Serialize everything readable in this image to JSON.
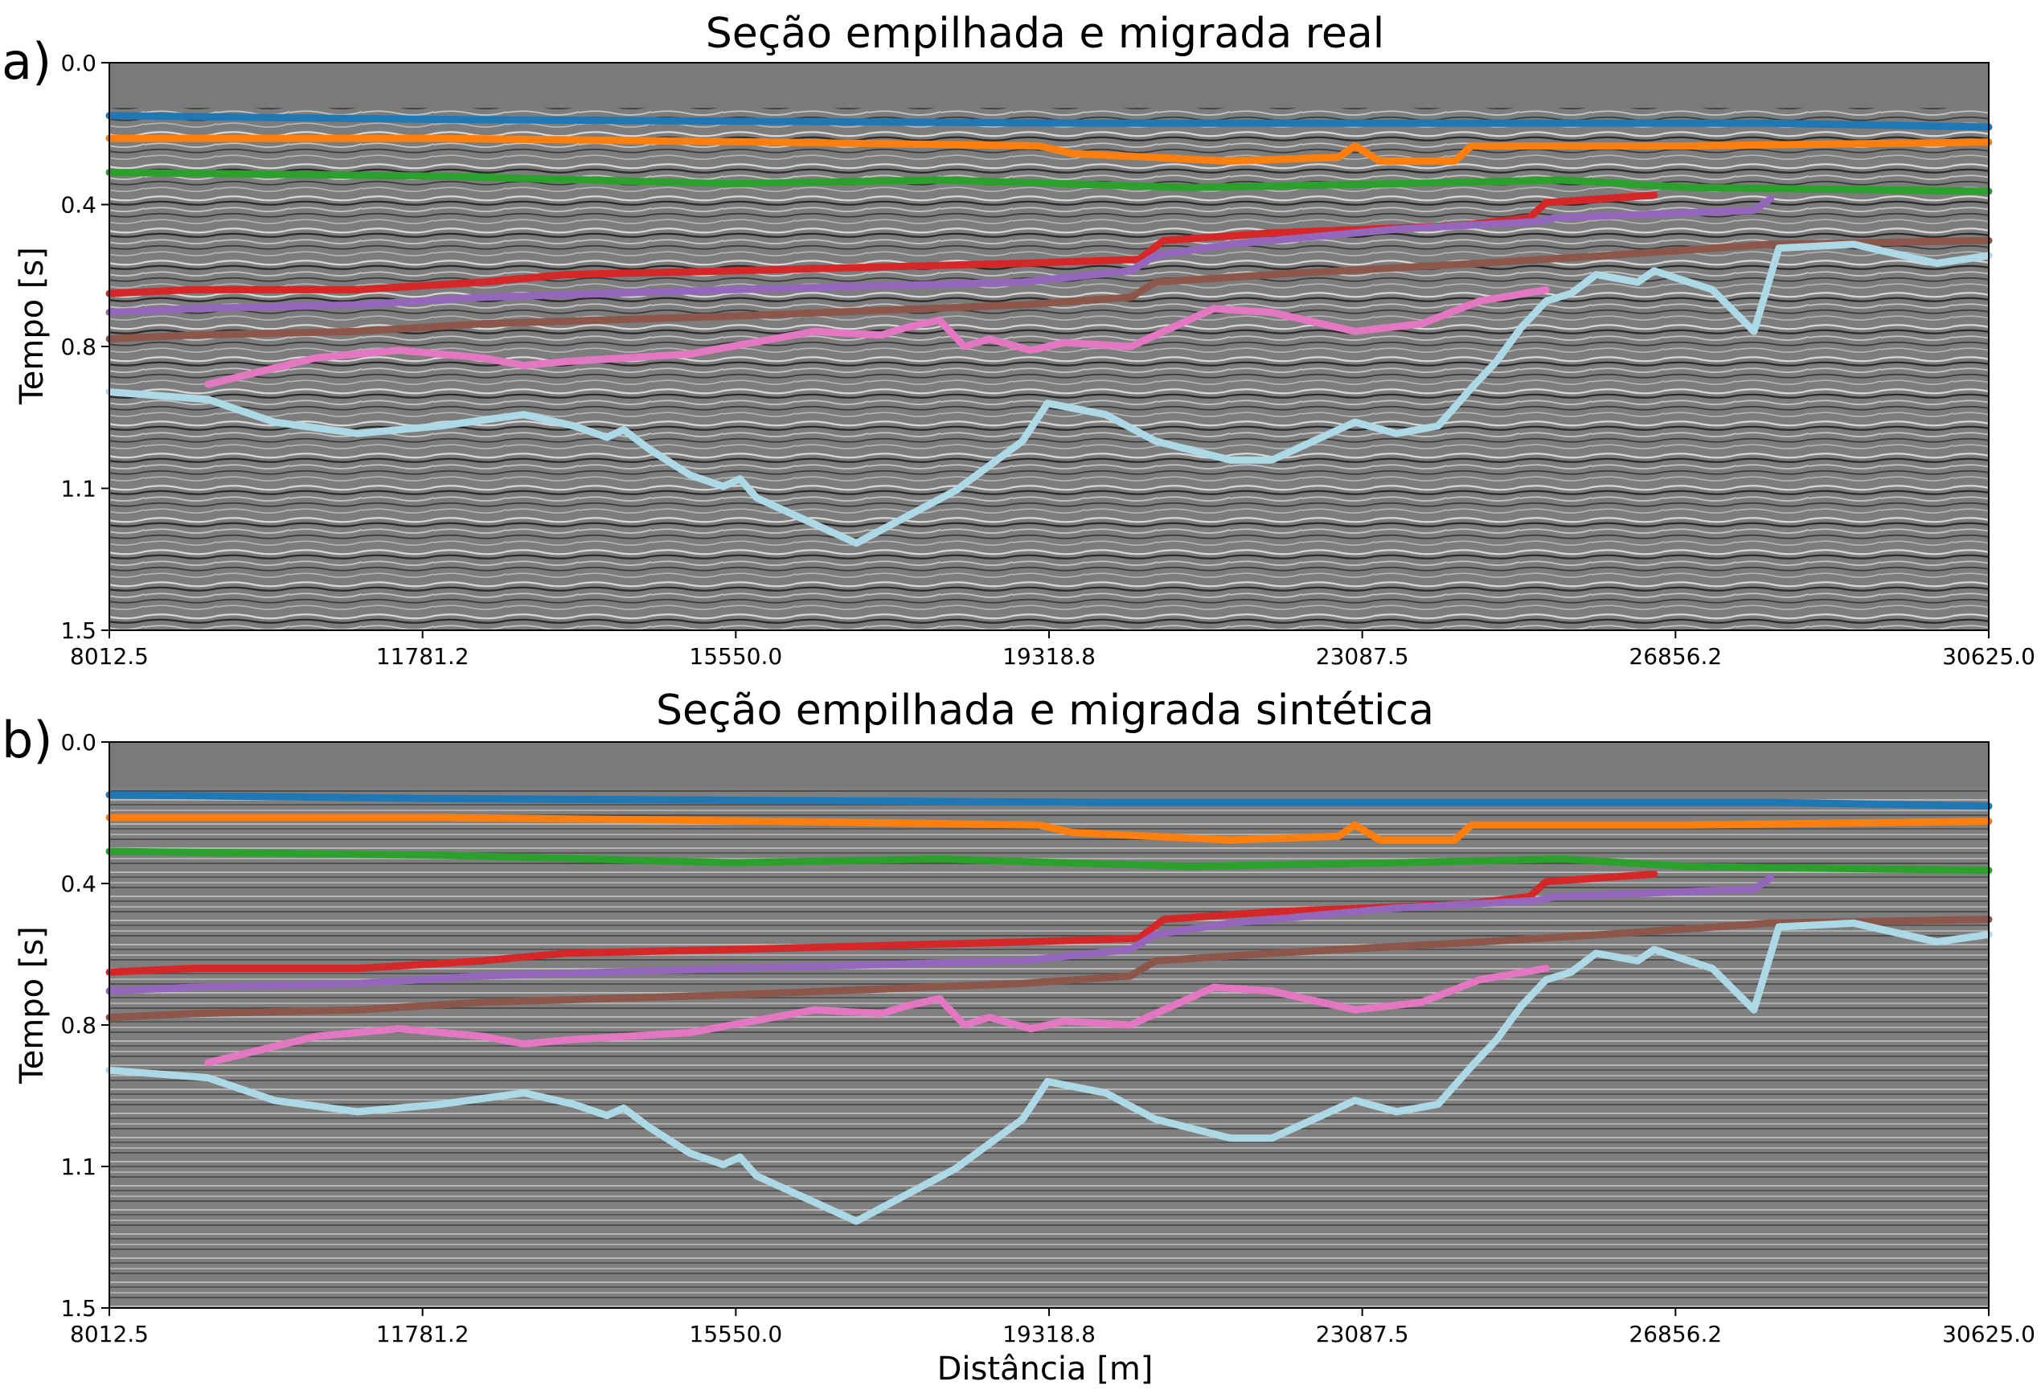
{
  "panels": [
    {
      "label": "a)",
      "title": "Seção empilhada e migrada real",
      "ylabel": "Tempo [s]",
      "xlabel": ""
    },
    {
      "label": "b)",
      "title": "Seção empilhada e migrada sintética",
      "ylabel": "Tempo [s]",
      "xlabel": "Distância [m]"
    }
  ],
  "colors": {
    "background": "#7a7a7a",
    "horizons": [
      "#1f77b4",
      "#ff7f0e",
      "#2ca02c",
      "#d62728",
      "#9467bd",
      "#8c564b",
      "#e377c2",
      "#add8e6"
    ]
  },
  "chart_data": [
    {
      "type": "line",
      "title": "Seção empilhada e migrada real",
      "xlabel": "",
      "ylabel": "Tempo [s]",
      "xlim": [
        8012.5,
        30625.0
      ],
      "ylim": [
        1.5,
        0.0
      ],
      "x_ticks": [
        "8012.5",
        "11781.2",
        "15550.0",
        "19318.8",
        "23087.5",
        "26856.2",
        "30625.0"
      ],
      "y_ticks": [
        "0.0",
        "0.4",
        "0.8",
        "1.1",
        "1.5"
      ],
      "background": "seismic section (grayscale)",
      "series": [
        {
          "color": "#1f77b4",
          "x": [
            8012.5,
            12000,
            16000,
            20000,
            24000,
            28000,
            30625
          ],
          "y": [
            0.14,
            0.15,
            0.155,
            0.16,
            0.16,
            0.16,
            0.17
          ]
        },
        {
          "color": "#ff7f0e",
          "x": [
            8012.5,
            12000,
            16000,
            19200,
            19600,
            21500,
            22800,
            23000,
            23300,
            24200,
            24400,
            27000,
            30625
          ],
          "y": [
            0.2,
            0.2,
            0.21,
            0.22,
            0.24,
            0.26,
            0.25,
            0.22,
            0.26,
            0.26,
            0.22,
            0.22,
            0.21
          ]
        },
        {
          "color": "#2ca02c",
          "x": [
            8012.5,
            12000,
            15500,
            18000,
            21000,
            23500,
            25500,
            27000,
            30625
          ],
          "y": [
            0.29,
            0.3,
            0.32,
            0.31,
            0.33,
            0.32,
            0.31,
            0.33,
            0.34
          ]
        },
        {
          "color": "#d62728",
          "x": [
            8012.5,
            9000,
            11000,
            12500,
            13500,
            15500,
            19000,
            20400,
            20700,
            22000,
            24300,
            25100,
            25300,
            26600
          ],
          "y": [
            0.61,
            0.6,
            0.6,
            0.58,
            0.56,
            0.55,
            0.53,
            0.52,
            0.47,
            0.45,
            0.43,
            0.41,
            0.37,
            0.35
          ]
        },
        {
          "color": "#9467bd",
          "x": [
            8012.5,
            9000,
            11000,
            12500,
            15500,
            19000,
            20300,
            20600,
            21500,
            23000,
            23500,
            25200,
            25400,
            27800,
            28000
          ],
          "y": [
            0.66,
            0.65,
            0.64,
            0.62,
            0.6,
            0.58,
            0.55,
            0.51,
            0.48,
            0.45,
            0.44,
            0.42,
            0.41,
            0.39,
            0.36
          ]
        },
        {
          "color": "#8c564b",
          "x": [
            8012.5,
            9000,
            11000,
            12500,
            15500,
            19000,
            20300,
            20600,
            22000,
            24500,
            26000,
            28000,
            30625
          ],
          "y": [
            0.73,
            0.72,
            0.71,
            0.69,
            0.67,
            0.64,
            0.62,
            0.58,
            0.56,
            0.53,
            0.51,
            0.48,
            0.47
          ]
        },
        {
          "color": "#e377c2",
          "x": [
            9200,
            10500,
            11500,
            12500,
            13000,
            13500,
            15000,
            16500,
            17300,
            17600,
            18000,
            18300,
            18600,
            19100,
            19500,
            20300,
            20800,
            21300,
            22000,
            23000,
            23800,
            24500,
            25300
          ],
          "y": [
            0.85,
            0.78,
            0.76,
            0.78,
            0.8,
            0.79,
            0.77,
            0.71,
            0.72,
            0.7,
            0.68,
            0.75,
            0.73,
            0.76,
            0.74,
            0.75,
            0.7,
            0.65,
            0.66,
            0.71,
            0.69,
            0.63,
            0.6
          ]
        },
        {
          "color": "#add8e6",
          "x": [
            8012.5,
            9200,
            10000,
            11000,
            12000,
            13000,
            13600,
            14000,
            14200,
            14500,
            15000,
            15400,
            15600,
            15800,
            17000,
            18200,
            19000,
            19300,
            20000,
            20600,
            21500,
            22000,
            23000,
            23500,
            24000,
            24400,
            24700,
            25000,
            25300,
            25600,
            25900,
            26400,
            26600,
            27300,
            27800,
            28100,
            29000,
            30000,
            30625
          ],
          "y": [
            0.87,
            0.89,
            0.95,
            0.98,
            0.96,
            0.93,
            0.96,
            0.99,
            0.97,
            1.02,
            1.09,
            1.12,
            1.1,
            1.15,
            1.27,
            1.13,
            1.0,
            0.9,
            0.93,
            1.0,
            1.05,
            1.05,
            0.95,
            0.98,
            0.96,
            0.86,
            0.79,
            0.7,
            0.63,
            0.61,
            0.56,
            0.58,
            0.55,
            0.6,
            0.71,
            0.49,
            0.48,
            0.53,
            0.51
          ]
        }
      ]
    },
    {
      "type": "line",
      "title": "Seção empilhada e migrada sintética",
      "xlabel": "Distância [m]",
      "ylabel": "Tempo [s]",
      "xlim": [
        8012.5,
        30625.0
      ],
      "ylim": [
        1.5,
        0.0
      ],
      "x_ticks": [
        "8012.5",
        "11781.2",
        "15550.0",
        "19318.8",
        "23087.5",
        "26856.2",
        "30625.0"
      ],
      "y_ticks": [
        "0.0",
        "0.4",
        "0.8",
        "1.1",
        "1.5"
      ],
      "background": "synthetic seismic section (grayscale)",
      "series": [
        {
          "color": "#1f77b4",
          "x": [
            8012.5,
            12000,
            16000,
            20000,
            24000,
            28000,
            30625
          ],
          "y": [
            0.14,
            0.15,
            0.155,
            0.16,
            0.16,
            0.16,
            0.17
          ]
        },
        {
          "color": "#ff7f0e",
          "x": [
            8012.5,
            12000,
            16000,
            19200,
            19600,
            21500,
            22800,
            23000,
            23300,
            24200,
            24400,
            27000,
            30625
          ],
          "y": [
            0.2,
            0.2,
            0.21,
            0.22,
            0.24,
            0.26,
            0.25,
            0.22,
            0.26,
            0.26,
            0.22,
            0.22,
            0.21
          ]
        },
        {
          "color": "#2ca02c",
          "x": [
            8012.5,
            12000,
            15500,
            18000,
            21000,
            23500,
            25500,
            27000,
            30625
          ],
          "y": [
            0.29,
            0.3,
            0.32,
            0.31,
            0.33,
            0.32,
            0.31,
            0.33,
            0.34
          ]
        },
        {
          "color": "#d62728",
          "x": [
            8012.5,
            9000,
            11000,
            12500,
            13500,
            15500,
            19000,
            20400,
            20700,
            22000,
            24300,
            25100,
            25300,
            26600
          ],
          "y": [
            0.61,
            0.6,
            0.6,
            0.58,
            0.56,
            0.55,
            0.53,
            0.52,
            0.47,
            0.45,
            0.43,
            0.41,
            0.37,
            0.35
          ]
        },
        {
          "color": "#9467bd",
          "x": [
            8012.5,
            9000,
            11000,
            12500,
            15500,
            19000,
            20300,
            20600,
            21500,
            23000,
            23500,
            25200,
            25400,
            27800,
            28000
          ],
          "y": [
            0.66,
            0.65,
            0.64,
            0.62,
            0.6,
            0.58,
            0.55,
            0.51,
            0.48,
            0.45,
            0.44,
            0.42,
            0.41,
            0.39,
            0.36
          ]
        },
        {
          "color": "#8c564b",
          "x": [
            8012.5,
            9000,
            11000,
            12500,
            15500,
            19000,
            20300,
            20600,
            22000,
            24500,
            26000,
            28000,
            30625
          ],
          "y": [
            0.73,
            0.72,
            0.71,
            0.69,
            0.67,
            0.64,
            0.62,
            0.58,
            0.56,
            0.53,
            0.51,
            0.48,
            0.47
          ]
        },
        {
          "color": "#e377c2",
          "x": [
            9200,
            10500,
            11500,
            12500,
            13000,
            13500,
            15000,
            16500,
            17300,
            17600,
            18000,
            18300,
            18600,
            19100,
            19500,
            20300,
            20800,
            21300,
            22000,
            23000,
            23800,
            24500,
            25300
          ],
          "y": [
            0.85,
            0.78,
            0.76,
            0.78,
            0.8,
            0.79,
            0.77,
            0.71,
            0.72,
            0.7,
            0.68,
            0.75,
            0.73,
            0.76,
            0.74,
            0.75,
            0.7,
            0.65,
            0.66,
            0.71,
            0.69,
            0.63,
            0.6
          ]
        },
        {
          "color": "#add8e6",
          "x": [
            8012.5,
            9200,
            10000,
            11000,
            12000,
            13000,
            13600,
            14000,
            14200,
            14500,
            15000,
            15400,
            15600,
            15800,
            17000,
            18200,
            19000,
            19300,
            20000,
            20600,
            21500,
            22000,
            23000,
            23500,
            24000,
            24400,
            24700,
            25000,
            25300,
            25600,
            25900,
            26400,
            26600,
            27300,
            27800,
            28100,
            29000,
            30000,
            30625
          ],
          "y": [
            0.87,
            0.89,
            0.95,
            0.98,
            0.96,
            0.93,
            0.96,
            0.99,
            0.97,
            1.02,
            1.09,
            1.12,
            1.1,
            1.15,
            1.27,
            1.13,
            1.0,
            0.9,
            0.93,
            1.0,
            1.05,
            1.05,
            0.95,
            0.98,
            0.96,
            0.86,
            0.79,
            0.7,
            0.63,
            0.61,
            0.56,
            0.58,
            0.55,
            0.6,
            0.71,
            0.49,
            0.48,
            0.53,
            0.51
          ]
        }
      ]
    }
  ]
}
